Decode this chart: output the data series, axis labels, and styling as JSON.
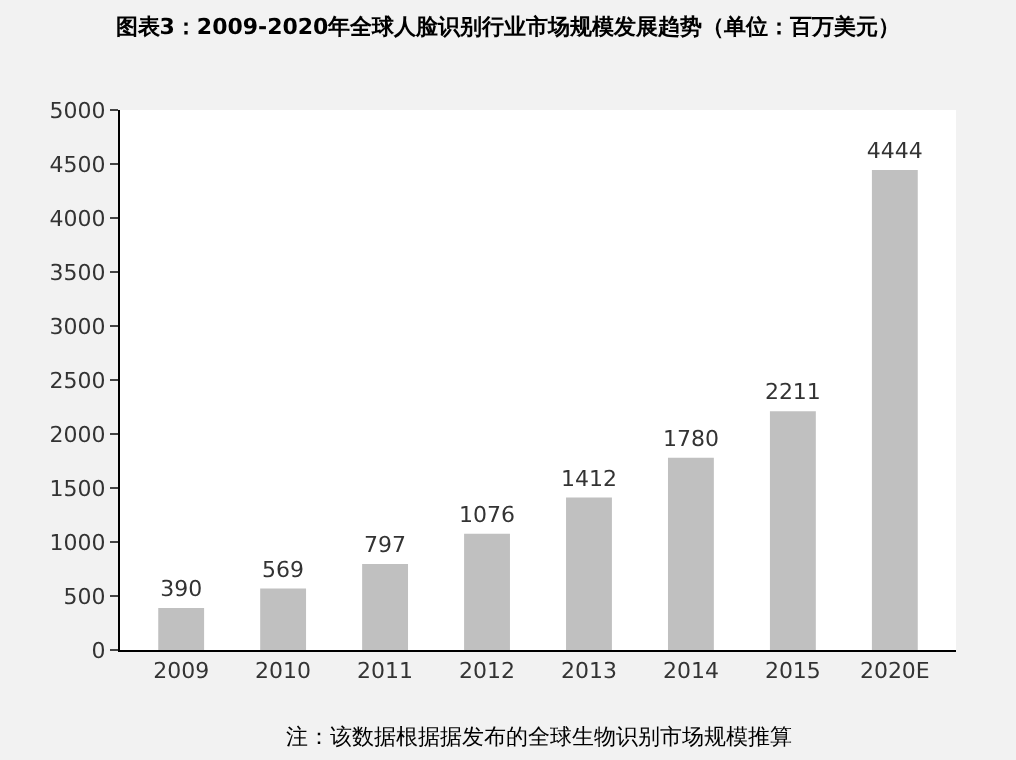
{
  "chart_data": {
    "type": "bar",
    "title": "图表3：2009-2020年全球人脸识别行业市场规模发展趋势（单位：百万美元）",
    "categories": [
      "2009",
      "2010",
      "2011",
      "2012",
      "2013",
      "2014",
      "2015",
      "2020E"
    ],
    "values": [
      390,
      569,
      797,
      1076,
      1412,
      1780,
      2211,
      4444
    ],
    "color": "#c0c0c0",
    "data_labels": true,
    "ylim": [
      0,
      5000
    ],
    "yticks": [
      0,
      500,
      1000,
      1500,
      2000,
      2500,
      3000,
      3500,
      4000,
      4500,
      5000
    ],
    "legend": false,
    "annotations": [
      "注：该数据根据据发布的全球生物识别市场规模推算"
    ]
  }
}
